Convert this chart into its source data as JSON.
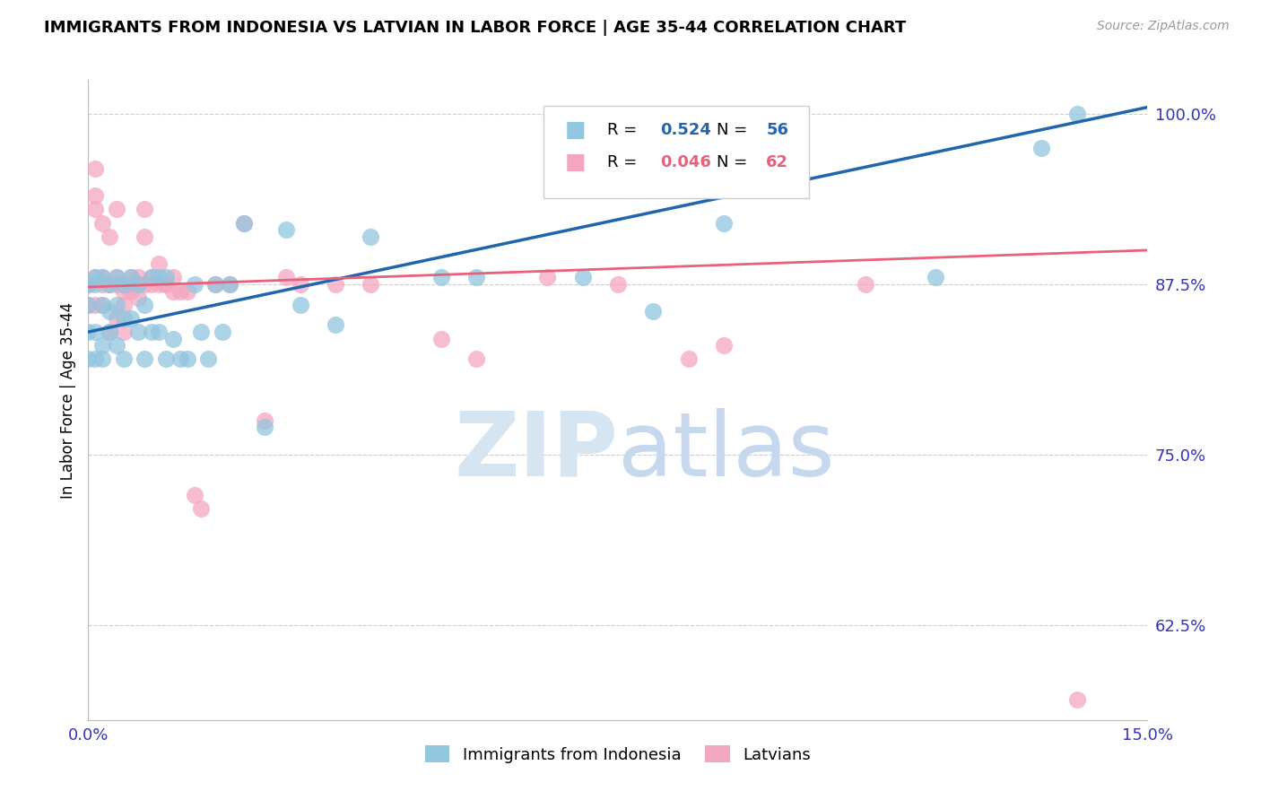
{
  "title": "IMMIGRANTS FROM INDONESIA VS LATVIAN IN LABOR FORCE | AGE 35-44 CORRELATION CHART",
  "source": "Source: ZipAtlas.com",
  "ylabel": "In Labor Force | Age 35-44",
  "xlim": [
    0.0,
    0.15
  ],
  "ylim": [
    0.555,
    1.025
  ],
  "yticks": [
    0.625,
    0.75,
    0.875,
    1.0
  ],
  "ytick_labels": [
    "62.5%",
    "75.0%",
    "87.5%",
    "100.0%"
  ],
  "xticks": [
    0.0,
    0.05,
    0.1,
    0.15
  ],
  "xtick_labels": [
    "0.0%",
    "",
    "",
    "15.0%"
  ],
  "blue_R": 0.524,
  "blue_N": 56,
  "pink_R": 0.046,
  "pink_N": 62,
  "blue_color": "#92c5de",
  "pink_color": "#f4a6c0",
  "blue_line_color": "#2166ac",
  "pink_line_color": "#e8607a",
  "blue_scatter_x": [
    0.0,
    0.0,
    0.0,
    0.0,
    0.001,
    0.001,
    0.001,
    0.001,
    0.002,
    0.002,
    0.002,
    0.002,
    0.003,
    0.003,
    0.003,
    0.004,
    0.004,
    0.004,
    0.005,
    0.005,
    0.005,
    0.006,
    0.006,
    0.007,
    0.007,
    0.008,
    0.008,
    0.009,
    0.009,
    0.01,
    0.01,
    0.011,
    0.011,
    0.012,
    0.013,
    0.014,
    0.015,
    0.016,
    0.017,
    0.018,
    0.019,
    0.02,
    0.022,
    0.025,
    0.028,
    0.03,
    0.035,
    0.04,
    0.05,
    0.055,
    0.07,
    0.08,
    0.09,
    0.12,
    0.135,
    0.14
  ],
  "blue_scatter_y": [
    0.875,
    0.86,
    0.84,
    0.82,
    0.88,
    0.875,
    0.84,
    0.82,
    0.88,
    0.86,
    0.83,
    0.82,
    0.875,
    0.855,
    0.84,
    0.88,
    0.86,
    0.83,
    0.875,
    0.85,
    0.82,
    0.88,
    0.85,
    0.875,
    0.84,
    0.86,
    0.82,
    0.88,
    0.84,
    0.88,
    0.84,
    0.88,
    0.82,
    0.835,
    0.82,
    0.82,
    0.875,
    0.84,
    0.82,
    0.875,
    0.84,
    0.875,
    0.92,
    0.77,
    0.915,
    0.86,
    0.845,
    0.91,
    0.88,
    0.88,
    0.88,
    0.855,
    0.92,
    0.88,
    0.975,
    1.0
  ],
  "pink_scatter_x": [
    0.0,
    0.0,
    0.0,
    0.001,
    0.001,
    0.001,
    0.001,
    0.001,
    0.002,
    0.002,
    0.002,
    0.002,
    0.003,
    0.003,
    0.003,
    0.003,
    0.004,
    0.004,
    0.004,
    0.004,
    0.005,
    0.005,
    0.005,
    0.005,
    0.005,
    0.006,
    0.006,
    0.006,
    0.007,
    0.007,
    0.007,
    0.008,
    0.008,
    0.008,
    0.009,
    0.009,
    0.01,
    0.01,
    0.011,
    0.011,
    0.012,
    0.012,
    0.013,
    0.014,
    0.015,
    0.016,
    0.018,
    0.02,
    0.022,
    0.025,
    0.028,
    0.03,
    0.035,
    0.04,
    0.05,
    0.055,
    0.065,
    0.075,
    0.085,
    0.09,
    0.11,
    0.14
  ],
  "pink_scatter_y": [
    0.875,
    0.875,
    0.86,
    0.96,
    0.94,
    0.93,
    0.88,
    0.86,
    0.92,
    0.88,
    0.875,
    0.86,
    0.91,
    0.875,
    0.875,
    0.84,
    0.93,
    0.88,
    0.875,
    0.85,
    0.875,
    0.875,
    0.87,
    0.86,
    0.84,
    0.88,
    0.875,
    0.87,
    0.88,
    0.875,
    0.865,
    0.93,
    0.91,
    0.875,
    0.88,
    0.875,
    0.89,
    0.875,
    0.875,
    0.875,
    0.87,
    0.88,
    0.87,
    0.87,
    0.72,
    0.71,
    0.875,
    0.875,
    0.92,
    0.775,
    0.88,
    0.875,
    0.875,
    0.875,
    0.835,
    0.82,
    0.88,
    0.875,
    0.82,
    0.83,
    0.875,
    0.57
  ],
  "watermark_zip": "ZIP",
  "watermark_atlas": "atlas",
  "watermark_color_zip": "#c8d8e8",
  "watermark_color_atlas": "#b8cfe8",
  "legend_label_blue": "Immigrants from Indonesia",
  "legend_label_pink": "Latvians",
  "background_color": "#ffffff",
  "grid_color": "#cccccc"
}
